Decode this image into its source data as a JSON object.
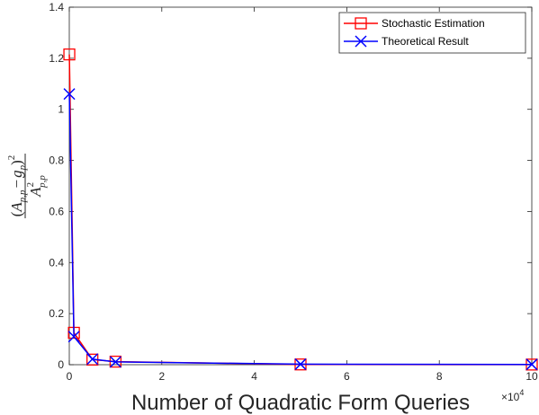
{
  "chart_data": {
    "type": "line",
    "xlabel": "Number of Quadratic Form Queries",
    "ylabel_parts": {
      "open": "(",
      "a": "A",
      "a_sub": "p,p",
      "minus": "−",
      "g": "g",
      "g_sub": "p",
      "close": ")",
      "power": "2",
      "den_a": "A",
      "den_sup": "2",
      "den_sub": "p,p"
    },
    "x_multiplier_base": "×10",
    "x_multiplier_exp": "4",
    "xlim": [
      0,
      100000
    ],
    "ylim": [
      0,
      1.4
    ],
    "xticks": [
      0,
      20000,
      40000,
      60000,
      80000,
      100000
    ],
    "xtick_labels": [
      "0",
      "2",
      "4",
      "6",
      "8",
      "10"
    ],
    "yticks": [
      0,
      0.2,
      0.4,
      0.6,
      0.8,
      1.0,
      1.2,
      1.4
    ],
    "ytick_labels": [
      "0",
      "0.2",
      "0.4",
      "0.6",
      "0.8",
      "1",
      "1.2",
      "1.4"
    ],
    "legend_position": "top-right",
    "series": [
      {
        "name": "Stochastic Estimation",
        "color": "#ff0000",
        "marker": "square",
        "x": [
          10,
          1000,
          5000,
          10000,
          50000,
          100000
        ],
        "y": [
          1.215,
          0.125,
          0.02,
          0.012,
          0.001,
          0.0005
        ]
      },
      {
        "name": "Theoretical Result",
        "color": "#0000ff",
        "marker": "x",
        "x": [
          10,
          1000,
          5000,
          10000,
          50000,
          100000
        ],
        "y": [
          1.06,
          0.11,
          0.022,
          0.011,
          0.002,
          0.001
        ]
      }
    ]
  }
}
